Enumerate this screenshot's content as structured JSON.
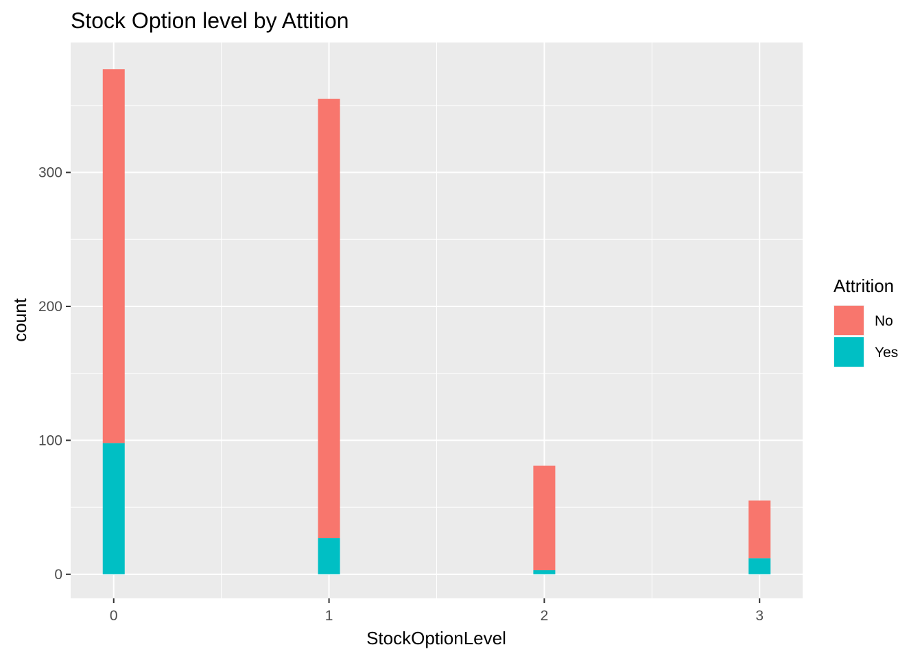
{
  "chart_data": {
    "type": "bar",
    "stacked": true,
    "title": "Stock Option level by Attition",
    "xlabel": "StockOptionLevel",
    "ylabel": "count",
    "x": [
      0,
      1,
      2,
      3
    ],
    "x_tick_labels": [
      "0",
      "1",
      "2",
      "3"
    ],
    "xlim": [
      -0.2,
      3.2
    ],
    "y_ticks": [
      0,
      100,
      200,
      300
    ],
    "ylim": [
      -18,
      397
    ],
    "grid": true,
    "series": [
      {
        "name": "No",
        "color": "#F8766D",
        "values": [
          279,
          328,
          78,
          43
        ]
      },
      {
        "name": "Yes",
        "color": "#00BFC4",
        "values": [
          98,
          27,
          3,
          12
        ]
      }
    ],
    "legend": {
      "title": "Attrition",
      "position": "right",
      "entries": [
        "No",
        "Yes"
      ]
    }
  }
}
